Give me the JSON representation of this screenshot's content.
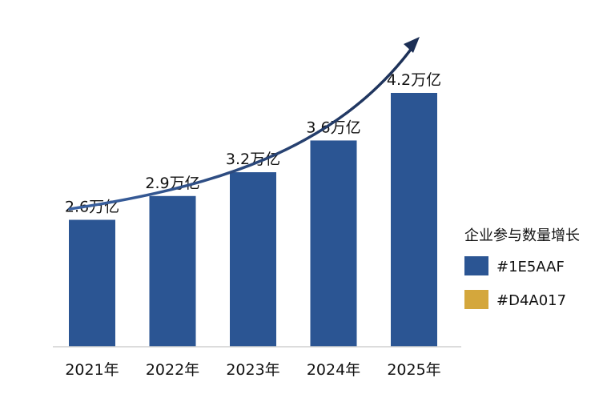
{
  "chart_data": {
    "type": "bar",
    "title": "",
    "xlabel": "",
    "ylabel": "",
    "categories": [
      "2021年",
      "2022年",
      "2023年",
      "2024年",
      "2025年"
    ],
    "series": [
      {
        "name": "企业参与数量增长",
        "values": [
          2.6,
          2.9,
          3.2,
          3.6,
          4.2
        ],
        "data_labels": [
          "2.6万亿",
          "2.9万亿",
          "3.2万亿",
          "3.6万亿",
          "4.2万亿"
        ]
      }
    ],
    "ylim": [
      1.0,
      4.2
    ],
    "grid": false,
    "trend_arrow": true,
    "legend": {
      "position": "right",
      "title": "企业参与数量增长",
      "items": [
        {
          "label": "#1E5AAF",
          "color": "#2b5593"
        },
        {
          "label": "#D4A017",
          "color": "#d4a73c"
        }
      ]
    },
    "colors": {
      "bar": "#2b5593",
      "arrow": "#1c2f55",
      "axis": "#d0d0d0"
    }
  }
}
